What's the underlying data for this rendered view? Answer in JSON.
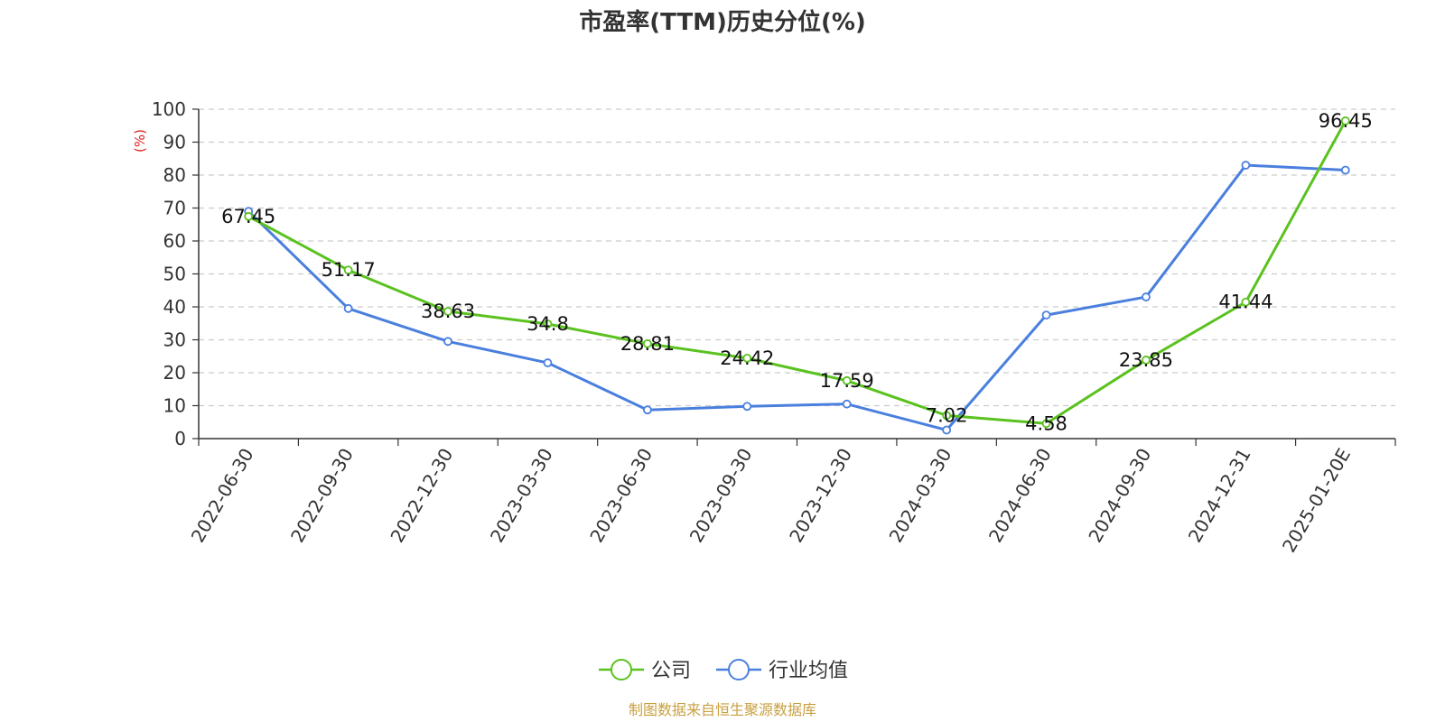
{
  "chart_data": {
    "type": "line",
    "title": "市盈率(TTM)历史分位(%)",
    "ylabel": "(%)",
    "ylim": [
      0,
      100
    ],
    "yticks": [
      0,
      10,
      20,
      30,
      40,
      50,
      60,
      70,
      80,
      90,
      100
    ],
    "grid": true,
    "legend_position": "bottom-center",
    "categories": [
      "2022-06-30",
      "2022-09-30",
      "2022-12-30",
      "2023-03-30",
      "2023-06-30",
      "2023-09-30",
      "2023-12-30",
      "2024-03-30",
      "2024-06-30",
      "2024-09-30",
      "2024-12-31",
      "2025-01-20E"
    ],
    "series": [
      {
        "name": "公司",
        "color": "#5ac21f",
        "values": [
          67.45,
          51.17,
          38.63,
          34.8,
          28.81,
          24.42,
          17.59,
          7.02,
          4.58,
          23.85,
          41.44,
          96.45
        ],
        "labels": [
          "67.45",
          "51.17",
          "38.63",
          "34.8",
          "28.81",
          "24.42",
          "17.59",
          "7.02",
          "4.58",
          "23.85",
          "41.44",
          "96.45"
        ]
      },
      {
        "name": "行业均值",
        "color": "#4a7fde",
        "values": [
          69,
          39.5,
          29.5,
          23,
          8.7,
          9.8,
          10.5,
          2.6,
          37.5,
          43,
          83,
          81.5
        ]
      }
    ],
    "source": "制图数据来自恒生聚源数据库",
    "source_color": "#c8a040",
    "ylabel_color": "#e02020"
  }
}
